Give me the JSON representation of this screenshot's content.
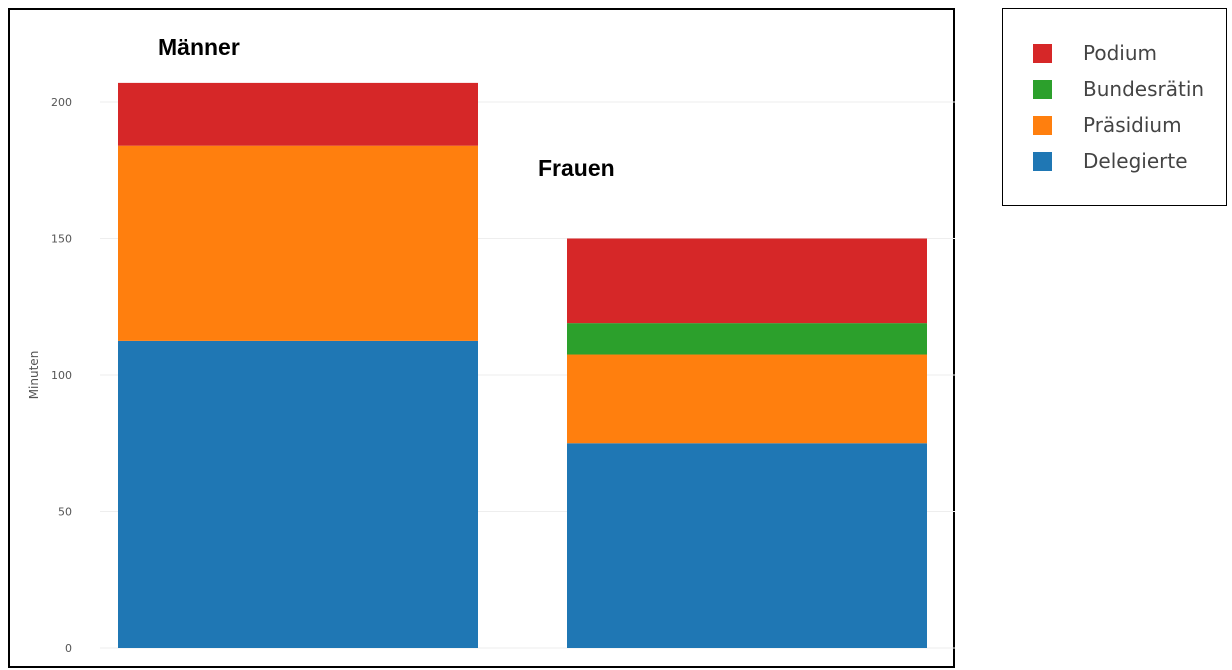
{
  "chart_data": {
    "type": "bar",
    "stacked": true,
    "categories": [
      "Männer",
      "Frauen"
    ],
    "series": [
      {
        "name": "Delegierte",
        "color": "#1f77b4",
        "values": [
          112.5,
          75
        ]
      },
      {
        "name": "Präsidium",
        "color": "#ff7f0e",
        "values": [
          71.5,
          32.5
        ]
      },
      {
        "name": "Bundesrätin",
        "color": "#2ca02c",
        "values": [
          0,
          11.5
        ]
      },
      {
        "name": "Podium",
        "color": "#d62728",
        "values": [
          23,
          31
        ]
      }
    ],
    "group_labels": [
      "Männer",
      "Frauen"
    ],
    "ylabel": "Minuten",
    "yticks": [
      0,
      50,
      100,
      150,
      200
    ],
    "ytick_labels": [
      "0",
      "50",
      "100",
      "150",
      "200"
    ],
    "ylim": [
      0,
      218
    ],
    "grid": true,
    "legend_position": "top-right",
    "legend_order": [
      "Podium",
      "Bundesrätin",
      "Präsidium",
      "Delegierte"
    ]
  }
}
